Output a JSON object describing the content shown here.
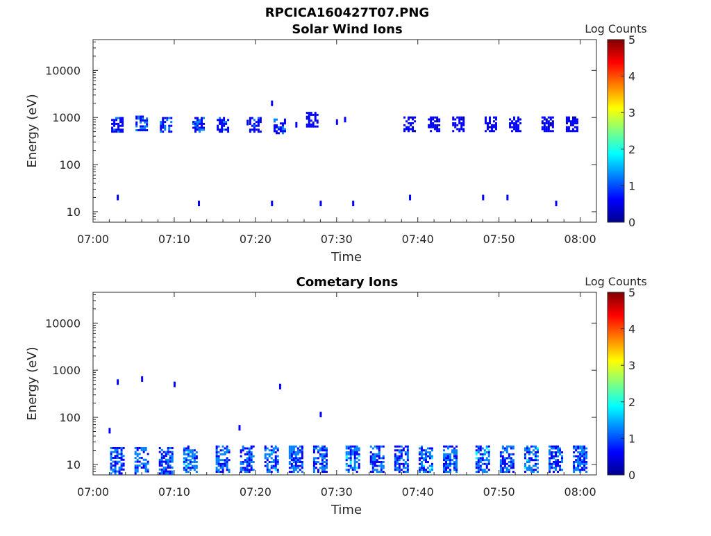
{
  "figure": {
    "title": "RPCICA160427T07.PNG"
  },
  "colors": {
    "colormap": [
      "#00008f",
      "#0000ff",
      "#0080ff",
      "#00ffff",
      "#80ff80",
      "#ffff00",
      "#ff8000",
      "#ff0000",
      "#800000"
    ],
    "axis": "#262626"
  },
  "chart_data": [
    {
      "type": "heatmap",
      "title": "Solar Wind Ions",
      "xlabel": "Time",
      "ylabel": "Energy (eV)",
      "xlim": [
        "07:00",
        "08:02"
      ],
      "xticks": [
        "07:00",
        "07:10",
        "07:20",
        "07:30",
        "07:40",
        "07:50",
        "08:00"
      ],
      "y_scale": "log",
      "ylim": [
        6,
        45000
      ],
      "yticks": [
        10,
        100,
        1000,
        10000
      ],
      "ytick_labels": [
        "10",
        "100",
        "1000",
        "10000"
      ],
      "colorbar": {
        "label": "Log Counts",
        "range": [
          0,
          5
        ],
        "ticks": [
          "0",
          "1",
          "2",
          "3",
          "4",
          "5"
        ]
      },
      "clusters": [
        {
          "t": "07:03",
          "e": 700,
          "level": 0.7
        },
        {
          "t": "07:06",
          "e": 750,
          "level": 0.9
        },
        {
          "t": "07:09",
          "e": 700,
          "level": 0.8
        },
        {
          "t": "07:13",
          "e": 700,
          "level": 0.8
        },
        {
          "t": "07:16",
          "e": 700,
          "level": 0.7
        },
        {
          "t": "07:20",
          "e": 700,
          "level": 0.7
        },
        {
          "t": "07:23",
          "e": 650,
          "level": 0.8
        },
        {
          "t": "07:27",
          "e": 900,
          "level": 0.6
        },
        {
          "t": "07:39",
          "e": 720,
          "level": 0.5
        },
        {
          "t": "07:42",
          "e": 720,
          "level": 0.5
        },
        {
          "t": "07:45",
          "e": 720,
          "level": 0.6
        },
        {
          "t": "07:49",
          "e": 720,
          "level": 0.6
        },
        {
          "t": "07:52",
          "e": 720,
          "level": 0.6
        },
        {
          "t": "07:56",
          "e": 720,
          "level": 0.5
        },
        {
          "t": "07:59",
          "e": 720,
          "level": 0.5
        }
      ],
      "specks": [
        {
          "t": "07:03",
          "e": 20
        },
        {
          "t": "07:13",
          "e": 15
        },
        {
          "t": "07:22",
          "e": 15
        },
        {
          "t": "07:28",
          "e": 15
        },
        {
          "t": "07:32",
          "e": 15
        },
        {
          "t": "07:39",
          "e": 20
        },
        {
          "t": "07:48",
          "e": 20
        },
        {
          "t": "07:51",
          "e": 20
        },
        {
          "t": "07:57",
          "e": 15
        },
        {
          "t": "07:22",
          "e": 2000
        },
        {
          "t": "07:25",
          "e": 700
        },
        {
          "t": "07:19",
          "e": 780
        },
        {
          "t": "07:30",
          "e": 800
        },
        {
          "t": "07:31",
          "e": 900
        }
      ]
    },
    {
      "type": "heatmap",
      "title": "Cometary Ions",
      "xlabel": "Time",
      "ylabel": "Energy (eV)",
      "xlim": [
        "07:00",
        "08:02"
      ],
      "xticks": [
        "07:00",
        "07:10",
        "07:20",
        "07:30",
        "07:40",
        "07:50",
        "08:00"
      ],
      "y_scale": "log",
      "ylim": [
        6,
        45000
      ],
      "yticks": [
        10,
        100,
        1000,
        10000
      ],
      "ytick_labels": [
        "10",
        "100",
        "1000",
        "10000"
      ],
      "colorbar": {
        "label": "Log Counts",
        "range": [
          0,
          5
        ],
        "ticks": [
          "0",
          "1",
          "2",
          "3",
          "4",
          "5"
        ]
      },
      "clusters": [
        {
          "t": "07:03",
          "e": 12,
          "level": 0.9
        },
        {
          "t": "07:06",
          "e": 12,
          "level": 1.0
        },
        {
          "t": "07:09",
          "e": 12,
          "level": 0.9
        },
        {
          "t": "07:12",
          "e": 13,
          "level": 1.1
        },
        {
          "t": "07:16",
          "e": 13,
          "level": 1.0
        },
        {
          "t": "07:19",
          "e": 13,
          "level": 0.9
        },
        {
          "t": "07:22",
          "e": 13,
          "level": 1.1
        },
        {
          "t": "07:25",
          "e": 13,
          "level": 1.0
        },
        {
          "t": "07:28",
          "e": 13,
          "level": 1.0
        },
        {
          "t": "07:32",
          "e": 13,
          "level": 1.1
        },
        {
          "t": "07:35",
          "e": 13,
          "level": 1.0
        },
        {
          "t": "07:38",
          "e": 13,
          "level": 0.9
        },
        {
          "t": "07:41",
          "e": 13,
          "level": 1.1
        },
        {
          "t": "07:44",
          "e": 13,
          "level": 1.0
        },
        {
          "t": "07:48",
          "e": 13,
          "level": 1.1
        },
        {
          "t": "07:51",
          "e": 13,
          "level": 1.0
        },
        {
          "t": "07:54",
          "e": 13,
          "level": 1.1
        },
        {
          "t": "07:57",
          "e": 13,
          "level": 1.0
        },
        {
          "t": "08:00",
          "e": 13,
          "level": 1.0
        }
      ],
      "specks": [
        {
          "t": "07:03",
          "e": 560
        },
        {
          "t": "07:06",
          "e": 650
        },
        {
          "t": "07:10",
          "e": 500
        },
        {
          "t": "07:23",
          "e": 450
        },
        {
          "t": "07:28",
          "e": 115
        },
        {
          "t": "07:18",
          "e": 60
        },
        {
          "t": "07:02",
          "e": 52
        }
      ]
    }
  ]
}
